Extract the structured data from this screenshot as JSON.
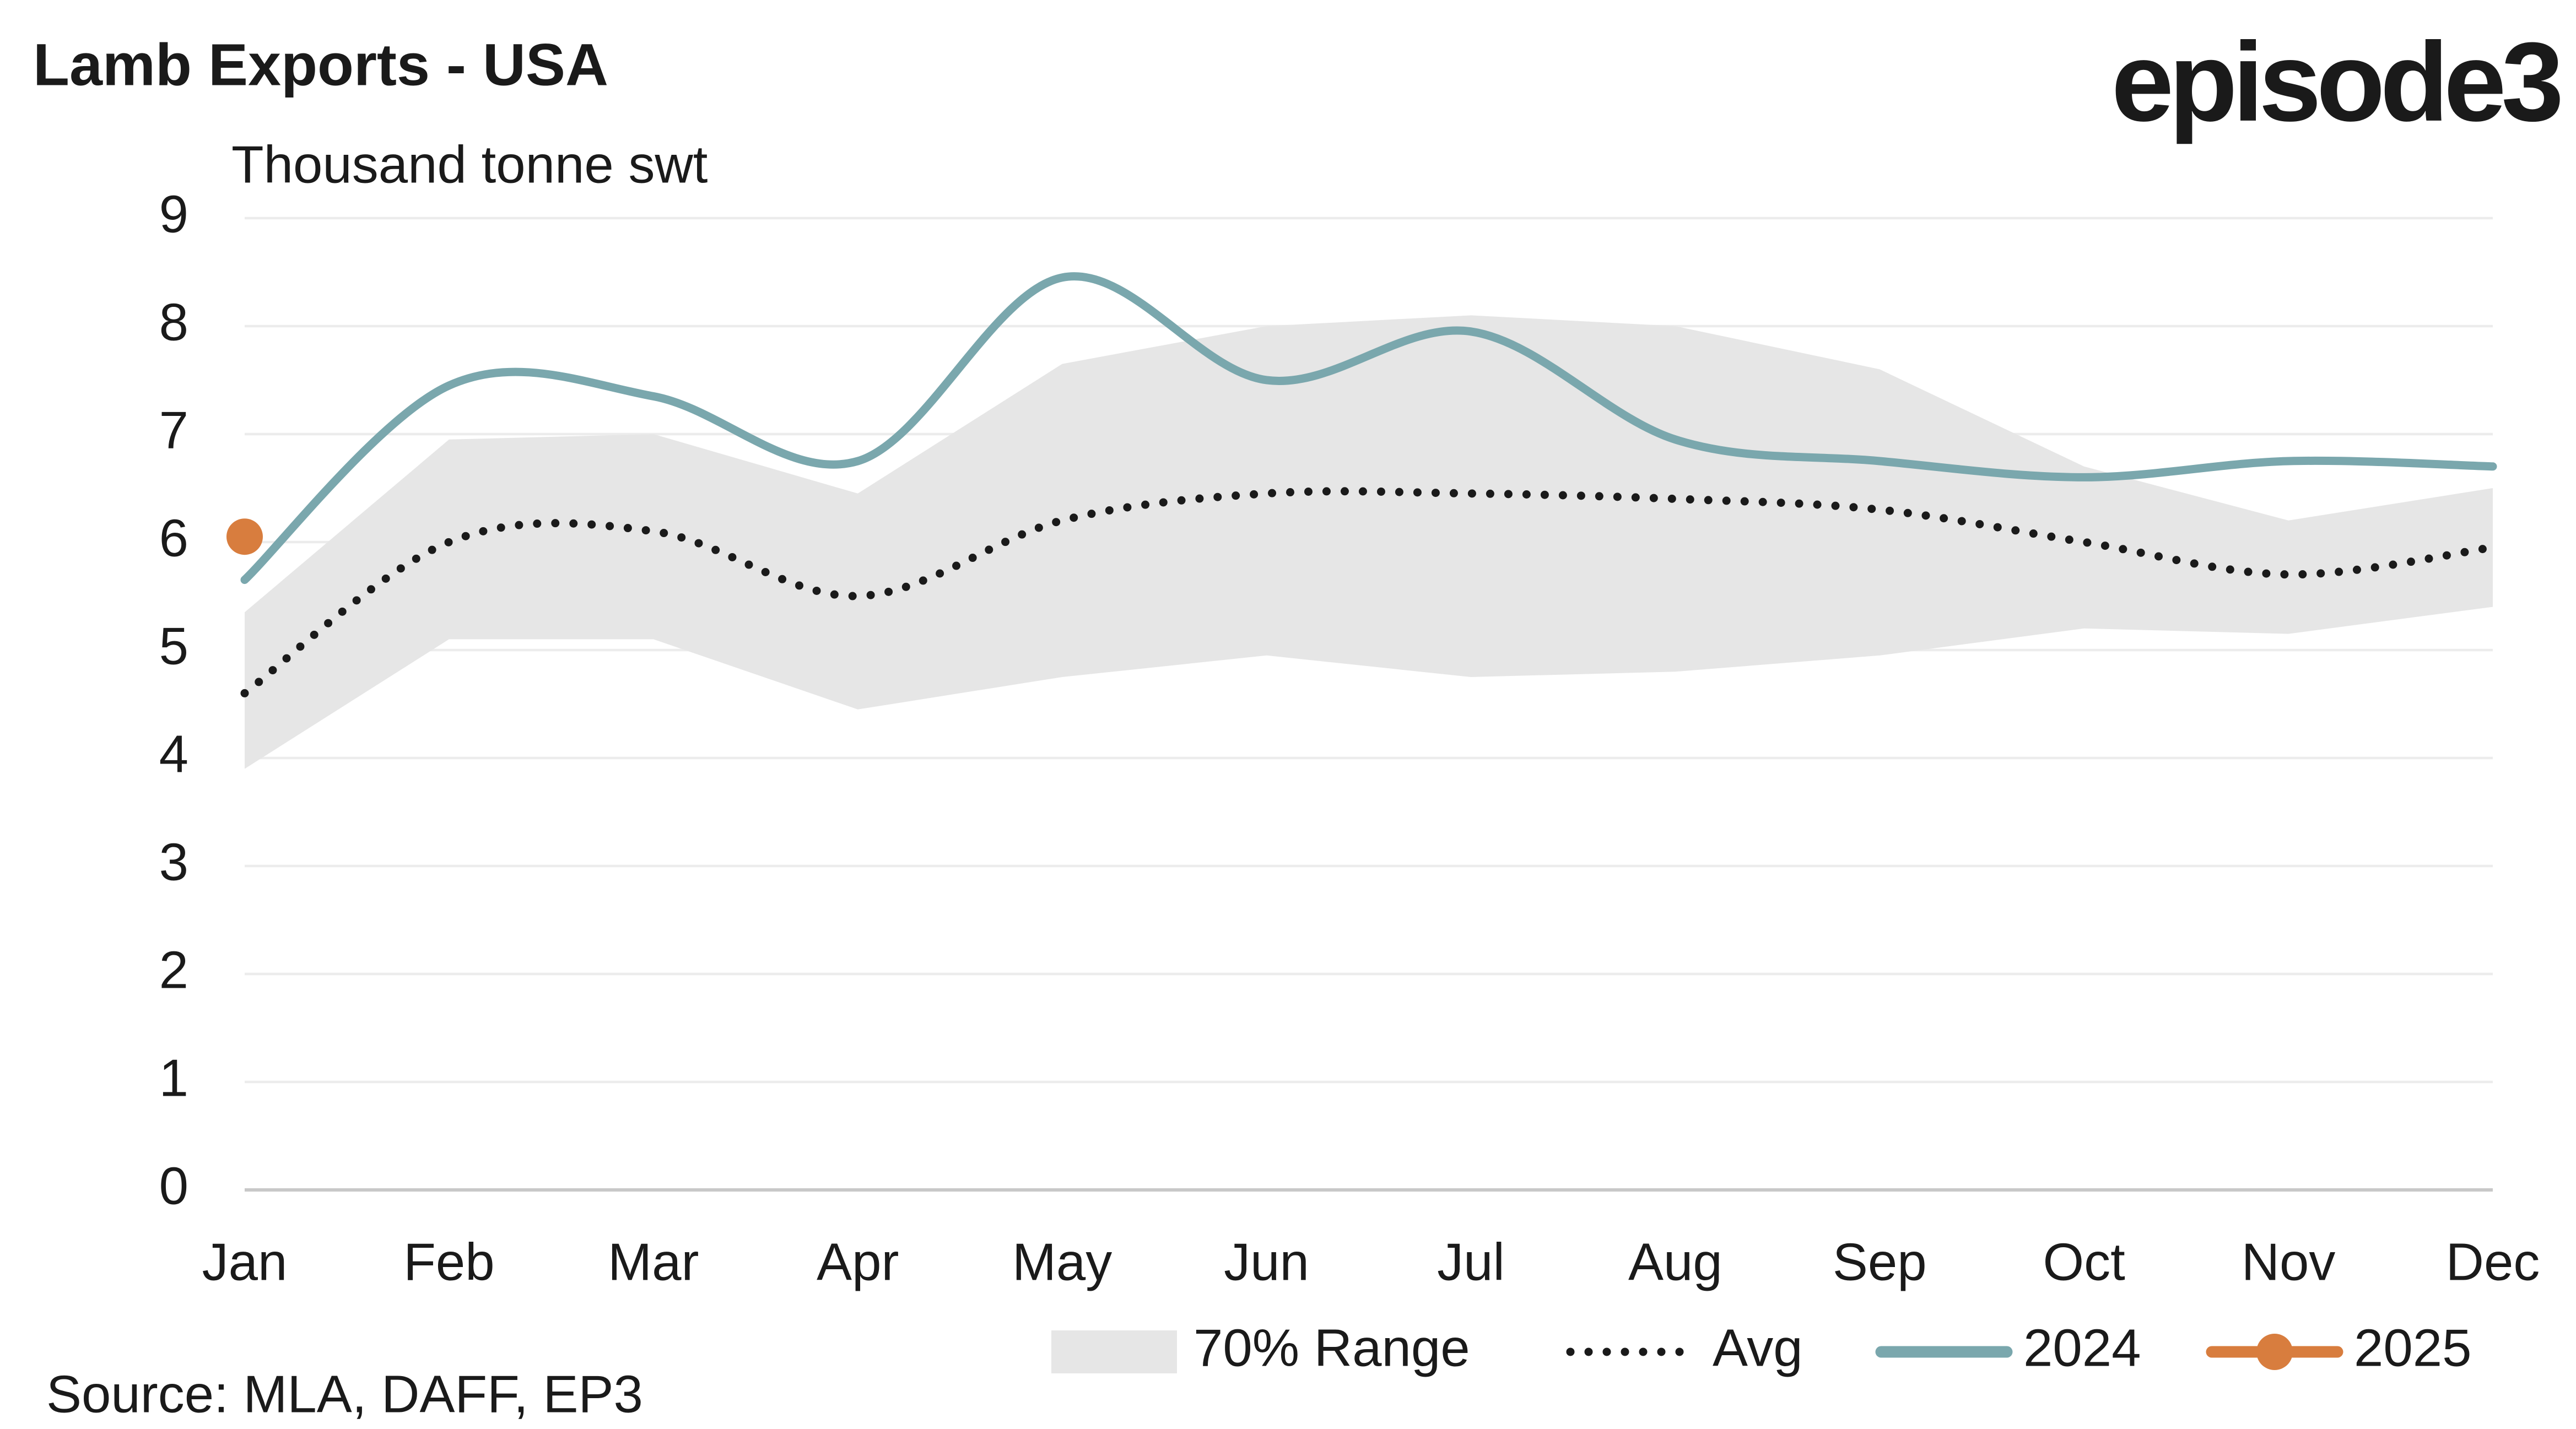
{
  "chart_data": {
    "type": "line",
    "title": "Lamb Exports - USA",
    "logo": "episode3",
    "y_axis_label": "Thousand tonne swt",
    "source": "Source: MLA, DAFF, EP3",
    "categories": [
      "Jan",
      "Feb",
      "Mar",
      "Apr",
      "May",
      "Jun",
      "Jul",
      "Aug",
      "Sep",
      "Oct",
      "Nov",
      "Dec"
    ],
    "ylim": [
      0,
      9
    ],
    "yticks": [
      0,
      1,
      2,
      3,
      4,
      5,
      6,
      7,
      8,
      9
    ],
    "grid": true,
    "legend": "bottom",
    "series": [
      {
        "name": "70% Range",
        "color": "#e6e6e6",
        "style": "band",
        "low": [
          3.9,
          5.1,
          5.1,
          4.45,
          4.75,
          4.95,
          4.75,
          4.8,
          4.95,
          5.2,
          5.15,
          5.4
        ],
        "high": [
          5.35,
          6.95,
          7.0,
          6.45,
          7.65,
          8.0,
          8.1,
          8.0,
          7.6,
          6.7,
          6.2,
          6.5
        ]
      },
      {
        "name": "Avg",
        "color": "#1a1a1a",
        "style": "dotted",
        "values": [
          4.6,
          6.0,
          6.1,
          5.5,
          6.2,
          6.45,
          6.45,
          6.4,
          6.3,
          6.0,
          5.7,
          5.95
        ]
      },
      {
        "name": "2024",
        "color": "#7aa7ad",
        "style": "solid",
        "values": [
          5.65,
          7.45,
          7.35,
          6.75,
          8.45,
          7.5,
          7.95,
          6.95,
          6.75,
          6.6,
          6.75,
          6.7
        ]
      },
      {
        "name": "2025",
        "color": "#d87d3e",
        "style": "marker",
        "values": [
          6.05,
          null,
          null,
          null,
          null,
          null,
          null,
          null,
          null,
          null,
          null,
          null
        ]
      }
    ]
  }
}
